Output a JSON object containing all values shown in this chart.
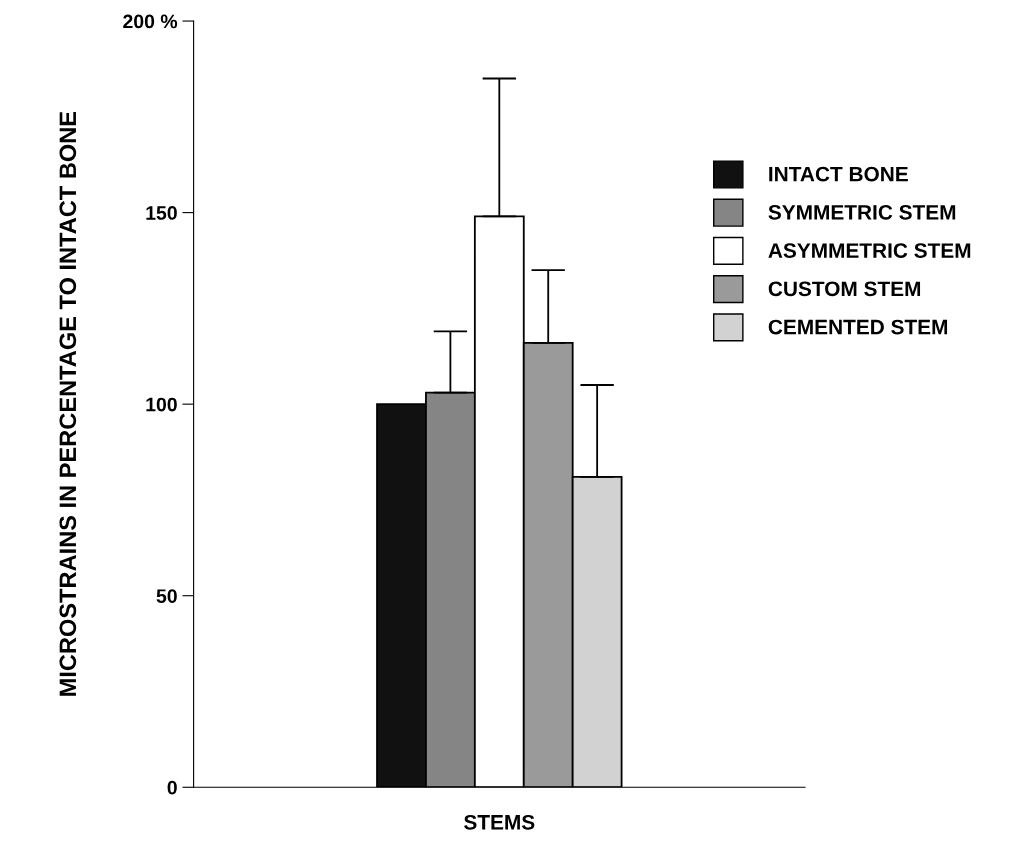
{
  "chart_data": {
    "type": "bar",
    "xlabel": "STEMS",
    "ylabel": "MICROSTRAINS IN PERCENTAGE TO INTACT BONE",
    "categories": [
      null
    ],
    "series": [
      {
        "name": "INTACT BONE",
        "color": "#111111",
        "values": [
          100
        ]
      },
      {
        "name": "SYMMETRIC STEM",
        "color": "#858585",
        "values": [
          103
        ],
        "errors": [
          [
            103,
            119
          ]
        ]
      },
      {
        "name": "ASYMMETRIC STEM",
        "color": "#ffffff",
        "values": [
          149
        ],
        "errors": [
          [
            149,
            185
          ]
        ]
      },
      {
        "name": "CUSTOM STEM",
        "color": "#9a9a9a",
        "values": [
          116
        ],
        "errors": [
          [
            116,
            135
          ]
        ]
      },
      {
        "name": "CEMENTED STEM",
        "color": "#d2d2d2",
        "values": [
          81
        ],
        "errors": [
          [
            81,
            105
          ]
        ]
      }
    ],
    "ylim": [
      0,
      200
    ],
    "yticks": [
      0,
      50,
      100,
      150,
      {
        "value": 200,
        "label": "200 %"
      }
    ],
    "grid": false,
    "legend": "right"
  }
}
